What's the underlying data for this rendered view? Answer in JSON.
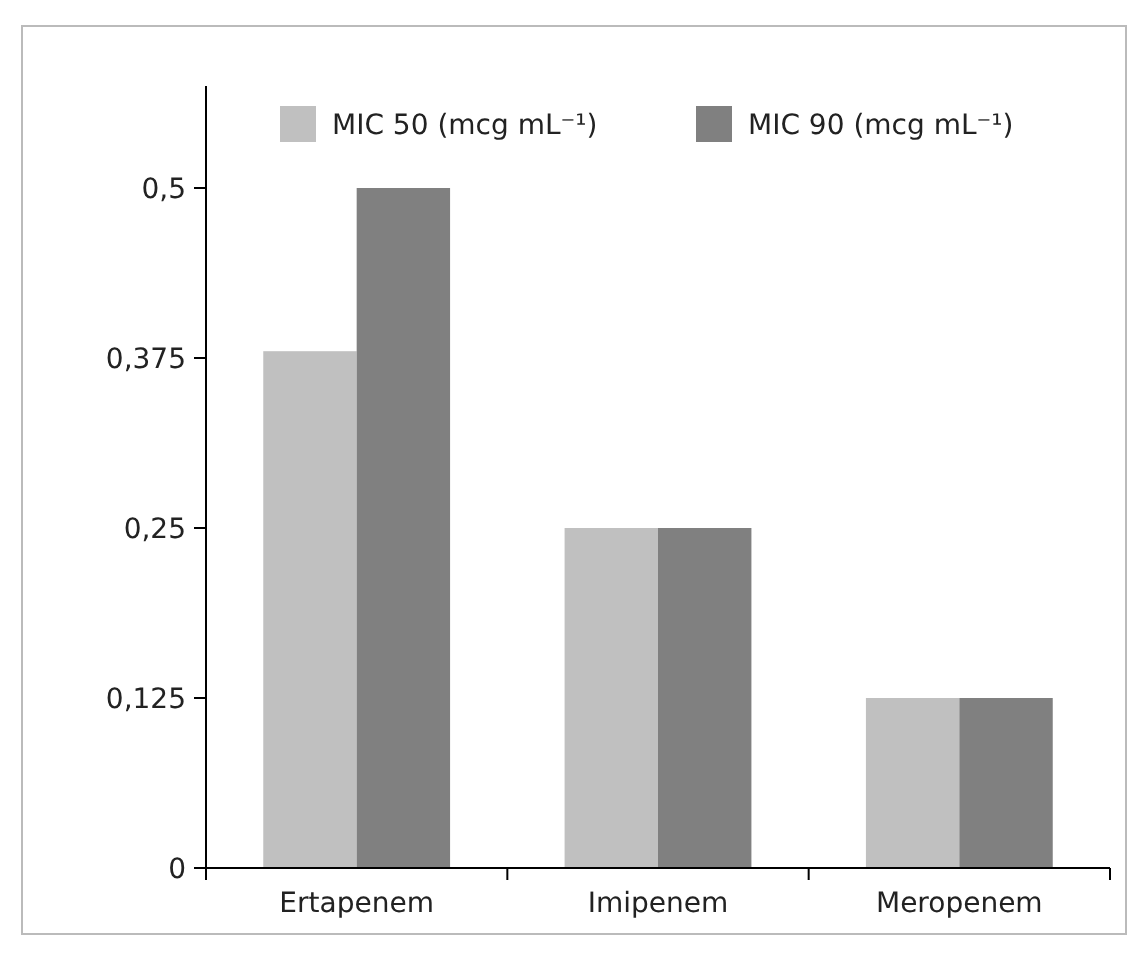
{
  "chart_data": {
    "type": "bar",
    "categories": [
      "Ertapenem",
      "Imipenem",
      "Meropenem"
    ],
    "series": [
      {
        "name": "MIC 50 (mcg mL⁻¹)",
        "color": "#c0c0c0",
        "values": [
          0.38,
          0.25,
          0.125
        ]
      },
      {
        "name": "MIC 90 (mcg mL⁻¹)",
        "color": "#808080",
        "values": [
          0.5,
          0.25,
          0.125
        ]
      }
    ],
    "ylim": [
      0,
      0.575
    ],
    "yticks": [
      {
        "value": 0,
        "label": "0"
      },
      {
        "value": 0.125,
        "label": "0,125"
      },
      {
        "value": 0.25,
        "label": "0,25"
      },
      {
        "value": 0.375,
        "label": "0,375"
      },
      {
        "value": 0.5,
        "label": "0,5"
      }
    ],
    "legend": "top right",
    "grid": false
  }
}
